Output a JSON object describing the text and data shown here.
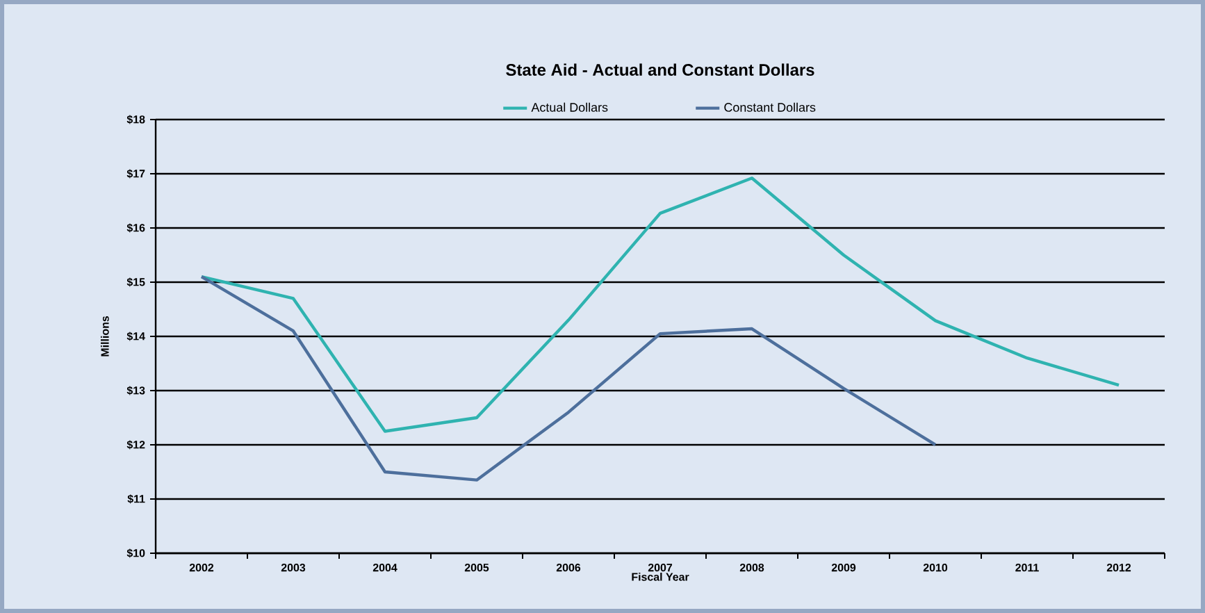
{
  "chart_data": {
    "type": "line",
    "title": "State Aid - Actual and Constant Dollars",
    "xlabel": "Fiscal Year",
    "ylabel": "Millions",
    "categories": [
      "2002",
      "2003",
      "2004",
      "2005",
      "2006",
      "2007",
      "2008",
      "2009",
      "2010",
      "2011",
      "2012"
    ],
    "series": [
      {
        "name": "Actual Dollars",
        "color": "#2fb3b0",
        "values": [
          15.1,
          14.7,
          12.25,
          12.5,
          14.3,
          16.27,
          16.92,
          15.5,
          14.29,
          13.6,
          13.1
        ]
      },
      {
        "name": "Constant Dollars",
        "color": "#4d6f9c",
        "values": [
          15.1,
          14.1,
          11.5,
          11.35,
          12.6,
          14.05,
          14.14,
          13.04,
          12.0,
          null,
          null
        ]
      }
    ],
    "ylim": [
      10,
      18
    ],
    "yticks": [
      {
        "value": 10,
        "label": "$10"
      },
      {
        "value": 11,
        "label": "$11"
      },
      {
        "value": 12,
        "label": "$12"
      },
      {
        "value": 13,
        "label": "$13"
      },
      {
        "value": 14,
        "label": "$14"
      },
      {
        "value": 15,
        "label": "$15"
      },
      {
        "value": 16,
        "label": "$16"
      },
      {
        "value": 17,
        "label": "$17"
      },
      {
        "value": 18,
        "label": "$18"
      }
    ],
    "grid": "y",
    "legend": "top",
    "marker": "none",
    "line_style": "solid"
  }
}
